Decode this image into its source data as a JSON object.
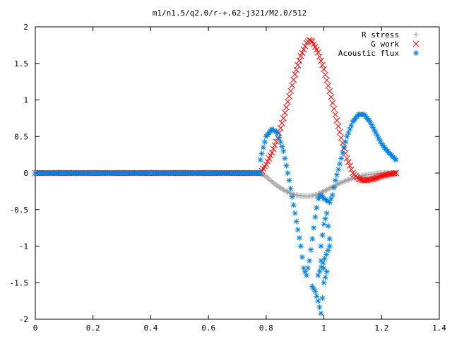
{
  "chart_data": {
    "type": "scatter",
    "title": "m1/n1.5/q2.0/r-+.62-j321/M2.0/512",
    "xlabel": "",
    "ylabel": "",
    "xlim": [
      0,
      1.4
    ],
    "ylim": [
      -2,
      2
    ],
    "xticks": [
      "0",
      "0.2",
      "0.4",
      "0.6",
      "0.8",
      "1",
      "1.2",
      "1.4"
    ],
    "yticks": [
      "2",
      "1.5",
      "1",
      "0.5",
      "0",
      "-0.5",
      "-1",
      "-1.5",
      "-2"
    ],
    "grid": false,
    "legend_position": "top-right",
    "series": [
      {
        "name": "R stress",
        "marker": "+",
        "color": "#a0a0a0",
        "points": [
          [
            0.0,
            0
          ],
          [
            0.1,
            0
          ],
          [
            0.2,
            0
          ],
          [
            0.3,
            0
          ],
          [
            0.4,
            0
          ],
          [
            0.5,
            0
          ],
          [
            0.6,
            0
          ],
          [
            0.7,
            0
          ],
          [
            0.78,
            0
          ],
          [
            0.8,
            -0.05
          ],
          [
            0.82,
            -0.12
          ],
          [
            0.84,
            -0.18
          ],
          [
            0.86,
            -0.23
          ],
          [
            0.88,
            -0.27
          ],
          [
            0.9,
            -0.3
          ],
          [
            0.92,
            -0.31
          ],
          [
            0.94,
            -0.32
          ],
          [
            0.96,
            -0.31
          ],
          [
            0.98,
            -0.29
          ],
          [
            1.0,
            -0.25
          ],
          [
            1.02,
            -0.21
          ],
          [
            1.04,
            -0.17
          ],
          [
            1.06,
            -0.13
          ],
          [
            1.08,
            -0.1
          ],
          [
            1.1,
            -0.07
          ],
          [
            1.12,
            -0.05
          ],
          [
            1.14,
            -0.03
          ],
          [
            1.16,
            -0.02
          ],
          [
            1.18,
            -0.01
          ],
          [
            1.2,
            0
          ],
          [
            1.22,
            0
          ],
          [
            1.25,
            0
          ]
        ]
      },
      {
        "name": "G work",
        "marker": "x",
        "color": "#ff0000",
        "points": [
          [
            0.0,
            0
          ],
          [
            0.1,
            0
          ],
          [
            0.2,
            0
          ],
          [
            0.3,
            0
          ],
          [
            0.4,
            0
          ],
          [
            0.5,
            0
          ],
          [
            0.6,
            0
          ],
          [
            0.7,
            0
          ],
          [
            0.78,
            0
          ],
          [
            0.79,
            0.06
          ],
          [
            0.8,
            0.12
          ],
          [
            0.82,
            0.28
          ],
          [
            0.84,
            0.48
          ],
          [
            0.86,
            0.75
          ],
          [
            0.88,
            1.05
          ],
          [
            0.9,
            1.35
          ],
          [
            0.92,
            1.6
          ],
          [
            0.94,
            1.78
          ],
          [
            0.95,
            1.82
          ],
          [
            0.96,
            1.8
          ],
          [
            0.98,
            1.65
          ],
          [
            1.0,
            1.42
          ],
          [
            1.02,
            1.12
          ],
          [
            1.04,
            0.8
          ],
          [
            1.06,
            0.48
          ],
          [
            1.08,
            0.2
          ],
          [
            1.1,
            0.0
          ],
          [
            1.12,
            -0.08
          ],
          [
            1.14,
            -0.1
          ],
          [
            1.16,
            -0.09
          ],
          [
            1.18,
            -0.07
          ],
          [
            1.2,
            -0.04
          ],
          [
            1.22,
            -0.02
          ],
          [
            1.25,
            0
          ]
        ]
      },
      {
        "name": "Acoustic flux",
        "marker": "*",
        "color": "#0080e0",
        "points": [
          [
            0.0,
            0
          ],
          [
            0.05,
            0
          ],
          [
            0.1,
            0
          ],
          [
            0.15,
            0
          ],
          [
            0.2,
            0
          ],
          [
            0.25,
            0
          ],
          [
            0.3,
            0
          ],
          [
            0.35,
            0
          ],
          [
            0.4,
            0
          ],
          [
            0.45,
            0
          ],
          [
            0.5,
            0
          ],
          [
            0.55,
            0
          ],
          [
            0.6,
            0
          ],
          [
            0.65,
            0
          ],
          [
            0.7,
            0
          ],
          [
            0.75,
            0
          ],
          [
            0.78,
            0
          ],
          [
            0.78,
            0.18
          ],
          [
            0.79,
            0.35
          ],
          [
            0.8,
            0.5
          ],
          [
            0.82,
            0.6
          ],
          [
            0.84,
            0.55
          ],
          [
            0.86,
            0.3
          ],
          [
            0.88,
            -0.1
          ],
          [
            0.9,
            -0.55
          ],
          [
            0.92,
            -1.0
          ],
          [
            0.93,
            -1.3
          ],
          [
            0.94,
            -1.4
          ],
          [
            0.95,
            -1.2
          ],
          [
            0.96,
            -0.9
          ],
          [
            0.97,
            -0.6
          ],
          [
            0.98,
            -0.35
          ],
          [
            0.99,
            -0.3
          ],
          [
            1.0,
            -0.35
          ],
          [
            1.02,
            -0.4
          ],
          [
            1.03,
            -0.3
          ],
          [
            1.04,
            -0.1
          ],
          [
            1.06,
            0.2
          ],
          [
            1.08,
            0.5
          ],
          [
            1.1,
            0.7
          ],
          [
            1.12,
            0.8
          ],
          [
            1.14,
            0.8
          ],
          [
            1.16,
            0.7
          ],
          [
            1.18,
            0.55
          ],
          [
            1.2,
            0.4
          ],
          [
            1.22,
            0.3
          ],
          [
            1.24,
            0.22
          ],
          [
            1.25,
            0.18
          ],
          [
            0.96,
            -1.55
          ],
          [
            0.97,
            -1.62
          ],
          [
            0.98,
            -1.75
          ],
          [
            0.99,
            -1.92
          ],
          [
            1.0,
            -1.5
          ],
          [
            1.01,
            -1.35
          ],
          [
            1.0,
            -1.3
          ],
          [
            0.99,
            -1.2
          ],
          [
            0.98,
            -1.4
          ],
          [
            1.02,
            -1.0
          ],
          [
            0.99,
            -1.0
          ],
          [
            1.0,
            -0.7
          ],
          [
            1.01,
            -0.55
          ],
          [
            1.02,
            -0.9
          ]
        ]
      }
    ]
  }
}
